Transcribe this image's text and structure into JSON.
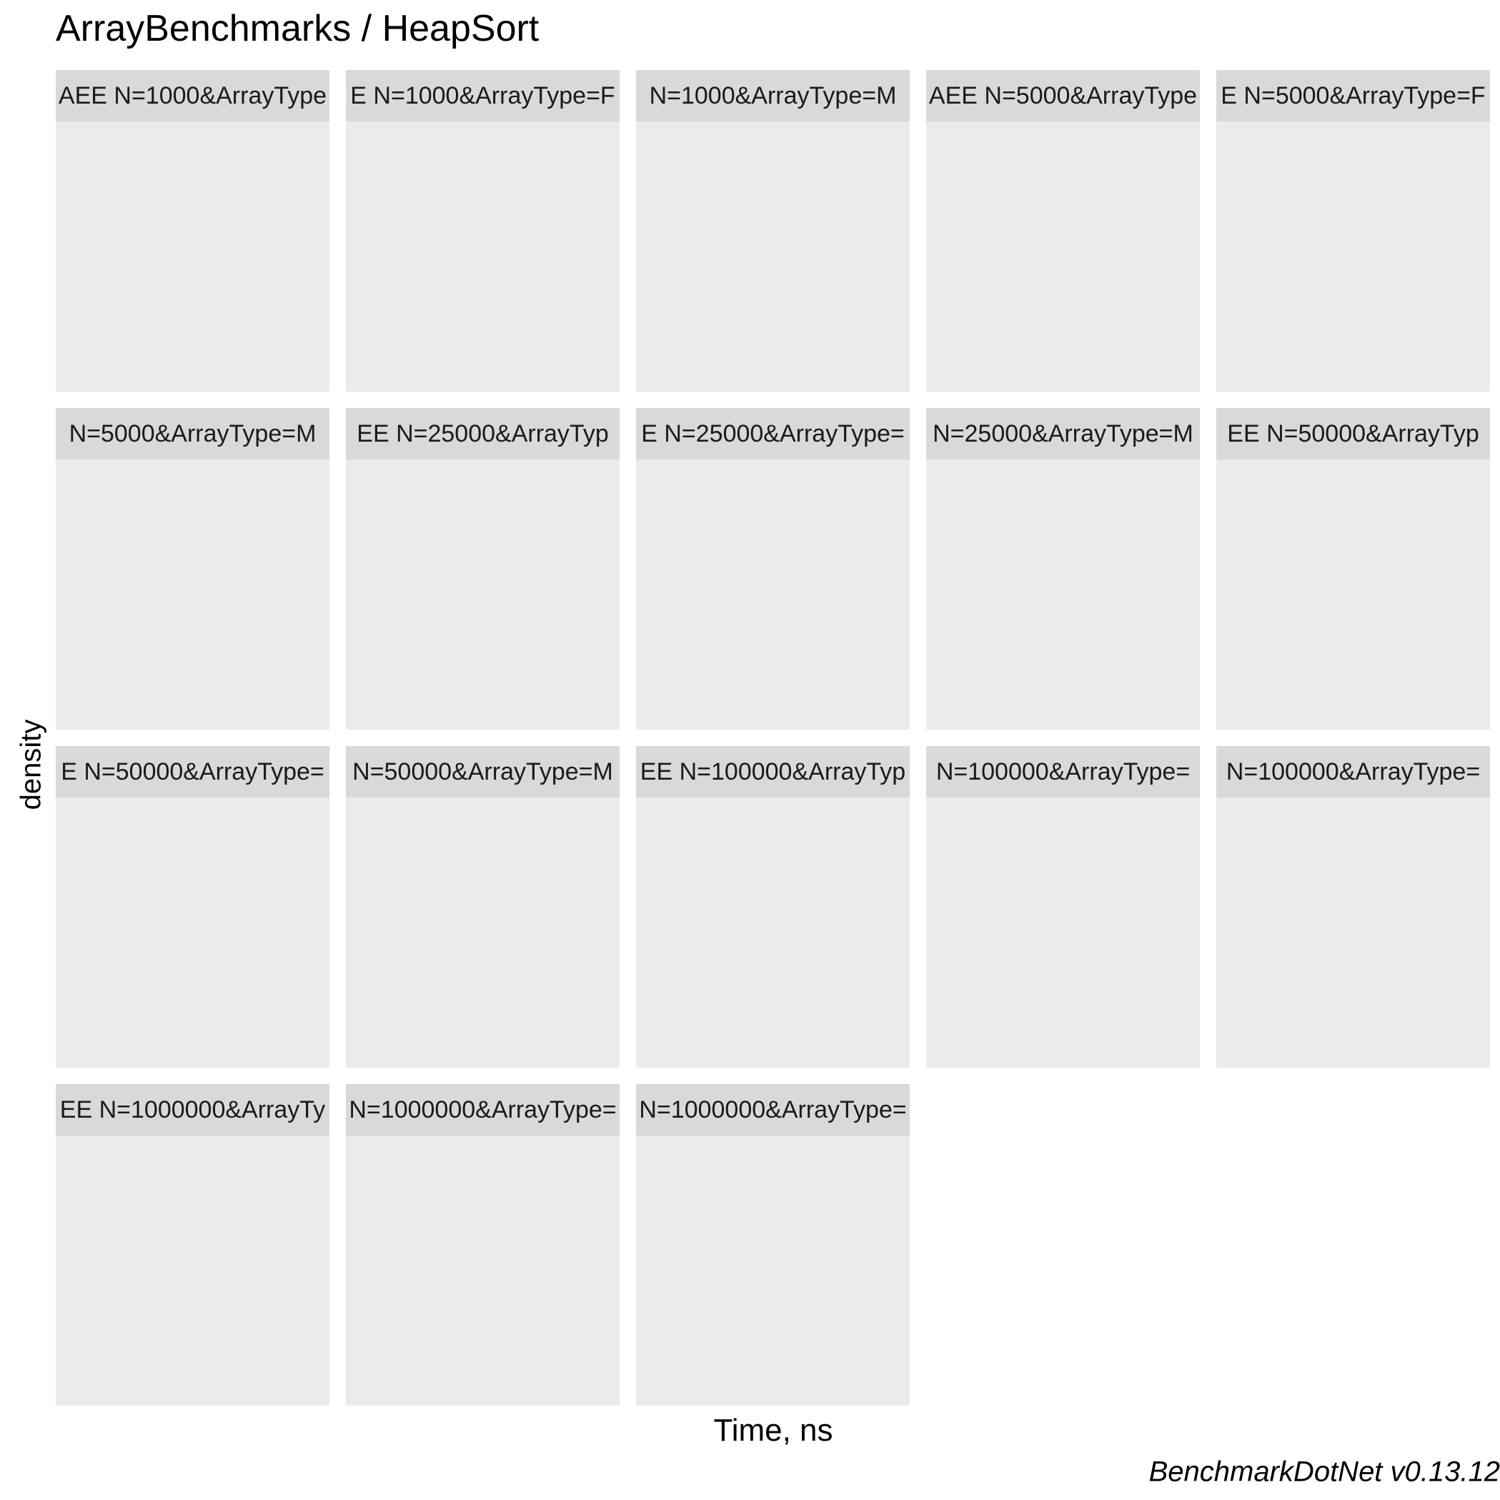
{
  "chart_data": {
    "type": "density",
    "title": "ArrayBenchmarks / HeapSort",
    "xlabel": "Time, ns",
    "ylabel": "density",
    "caption": "BenchmarkDotNet v0.13.12",
    "facet_columns": 5,
    "facets": [
      {
        "label": "AEE N=1000&ArrayType",
        "series": []
      },
      {
        "label": "E N=1000&ArrayType=F",
        "series": []
      },
      {
        "label": "N=1000&ArrayType=M",
        "series": []
      },
      {
        "label": "AEE N=5000&ArrayType",
        "series": []
      },
      {
        "label": "E N=5000&ArrayType=F",
        "series": []
      },
      {
        "label": "N=5000&ArrayType=M",
        "series": []
      },
      {
        "label": "EE N=25000&ArrayTyp",
        "series": []
      },
      {
        "label": "E N=25000&ArrayType=",
        "series": []
      },
      {
        "label": "N=25000&ArrayType=M",
        "series": []
      },
      {
        "label": "EE N=50000&ArrayTyp",
        "series": []
      },
      {
        "label": "E N=50000&ArrayType=",
        "series": []
      },
      {
        "label": "N=50000&ArrayType=M",
        "series": []
      },
      {
        "label": "EE N=100000&ArrayTyp",
        "series": []
      },
      {
        "label": "N=100000&ArrayType=",
        "series": []
      },
      {
        "label": "N=100000&ArrayType=",
        "series": []
      },
      {
        "label": "EE N=1000000&ArrayTy",
        "series": []
      },
      {
        "label": "N=1000000&ArrayType=",
        "series": []
      },
      {
        "label": "N=1000000&ArrayType=",
        "series": []
      }
    ]
  },
  "colors": {
    "panel_background": "#ebebeb",
    "strip_background": "#d9d9d9",
    "strip_text": "#1a1a1a",
    "page_background": "#ffffff"
  }
}
